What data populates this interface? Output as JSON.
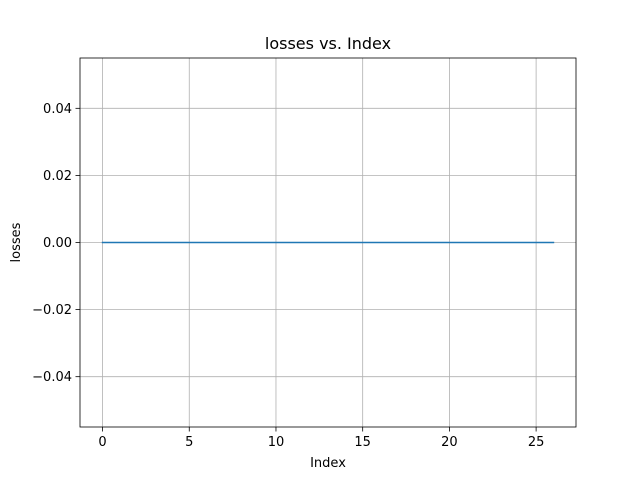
{
  "chart_data": {
    "type": "line",
    "title": "losses vs. Index",
    "xlabel": "Index",
    "ylabel": "losses",
    "xlim": [
      -1.3,
      27.3
    ],
    "ylim": [
      -0.055,
      0.055
    ],
    "xticks": [
      0,
      5,
      10,
      15,
      20,
      25
    ],
    "xtick_labels": [
      "0",
      "5",
      "10",
      "15",
      "20",
      "25"
    ],
    "yticks": [
      -0.04,
      -0.02,
      0.0,
      0.02,
      0.04
    ],
    "ytick_labels": [
      "−0.04",
      "−0.02",
      "0.00",
      "0.02",
      "0.04"
    ],
    "grid": true,
    "series": [
      {
        "color": "#1f77b4",
        "x": [
          0,
          1,
          2,
          3,
          4,
          5,
          6,
          7,
          8,
          9,
          10,
          11,
          12,
          13,
          14,
          15,
          16,
          17,
          18,
          19,
          20,
          21,
          22,
          23,
          24,
          25,
          26
        ],
        "values": [
          0,
          0,
          0,
          0,
          0,
          0,
          0,
          0,
          0,
          0,
          0,
          0,
          0,
          0,
          0,
          0,
          0,
          0,
          0,
          0,
          0,
          0,
          0,
          0,
          0,
          0,
          0
        ]
      }
    ]
  }
}
